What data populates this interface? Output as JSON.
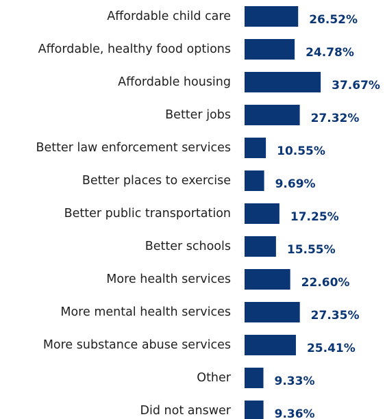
{
  "chart_data": {
    "type": "bar",
    "orientation": "horizontal",
    "title": "",
    "xlabel": "",
    "ylabel": "",
    "categories": [
      "Affordable child care",
      "Affordable, healthy food options",
      "Affordable housing",
      "Better jobs",
      "Better law enforcement services",
      "Better places to exercise",
      "Better public transportation",
      "Better schools",
      "More health services",
      "More mental health services",
      "More substance abuse services",
      "Other",
      "Did not answer"
    ],
    "values": [
      26.52,
      24.78,
      37.67,
      27.32,
      10.55,
      9.69,
      17.25,
      15.55,
      22.6,
      27.35,
      25.41,
      9.33,
      9.36
    ],
    "value_labels": [
      "26.52%",
      "24.78%",
      "37.67%",
      "27.32%",
      "10.55%",
      "9.69%",
      "17.25%",
      "15.55%",
      "22.60%",
      "27.35%",
      "25.41%",
      "9.33%",
      "9.36%"
    ],
    "unit": "%",
    "xlim": [
      0,
      40
    ],
    "grid": false,
    "legend": "none",
    "colors": {
      "bar": "#0b3675",
      "value_label": "#0b3675",
      "category_label": "#1f1f1f"
    }
  }
}
